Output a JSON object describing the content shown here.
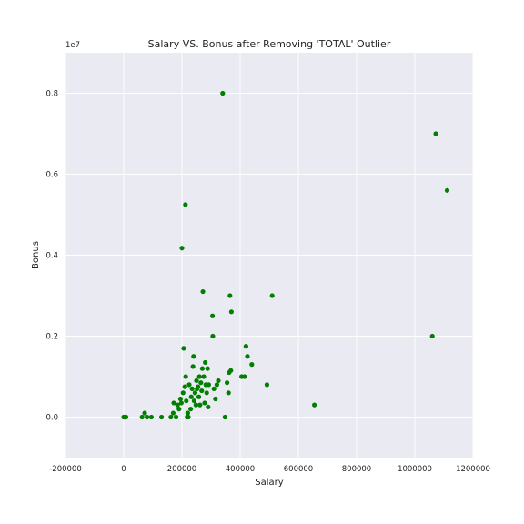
{
  "chart_data": {
    "type": "scatter",
    "title": "Salary VS. Bonus after Removing 'TOTAL' Outlier",
    "xlabel": "Salary",
    "ylabel": "Bonus",
    "xlim": [
      -200000,
      1200000
    ],
    "ylim": [
      -1000000,
      9000000
    ],
    "x_ticks": [
      -200000,
      0,
      200000,
      400000,
      600000,
      800000,
      1000000,
      1200000
    ],
    "x_tick_labels": [
      "-200000",
      "0",
      "200000",
      "400000",
      "600000",
      "800000",
      "1000000",
      "1200000"
    ],
    "y_ticks": [
      0,
      2000000,
      4000000,
      6000000,
      8000000
    ],
    "y_tick_labels": [
      "0.0",
      "0.2",
      "0.4",
      "0.6",
      "0.8"
    ],
    "y_offset_label": "1e7",
    "grid": true,
    "background_color": "#eaeaf2",
    "point_color": "#007f00",
    "points": [
      [
        0,
        0
      ],
      [
        2000,
        0
      ],
      [
        4000,
        0
      ],
      [
        6000,
        0
      ],
      [
        8000,
        0
      ],
      [
        63000,
        0
      ],
      [
        72000,
        100000
      ],
      [
        80000,
        0
      ],
      [
        95000,
        0
      ],
      [
        130000,
        0
      ],
      [
        162000,
        0
      ],
      [
        170000,
        100000
      ],
      [
        172000,
        350000
      ],
      [
        180000,
        0
      ],
      [
        185000,
        300000
      ],
      [
        190000,
        200000
      ],
      [
        195000,
        450000
      ],
      [
        198000,
        350000
      ],
      [
        200000,
        4175000
      ],
      [
        204000,
        600000
      ],
      [
        206000,
        1700000
      ],
      [
        210000,
        750000
      ],
      [
        212000,
        5250000
      ],
      [
        213000,
        1000000
      ],
      [
        215000,
        400000
      ],
      [
        218000,
        0
      ],
      [
        220000,
        100000
      ],
      [
        222000,
        0
      ],
      [
        225000,
        800000
      ],
      [
        230000,
        200000
      ],
      [
        232000,
        500000
      ],
      [
        235000,
        700000
      ],
      [
        238000,
        1250000
      ],
      [
        240000,
        1500000
      ],
      [
        242000,
        400000
      ],
      [
        245000,
        600000
      ],
      [
        248000,
        300000
      ],
      [
        250000,
        900000
      ],
      [
        252000,
        700000
      ],
      [
        255000,
        750000
      ],
      [
        258000,
        500000
      ],
      [
        260000,
        1000000
      ],
      [
        262000,
        300000
      ],
      [
        265000,
        850000
      ],
      [
        268000,
        650000
      ],
      [
        270000,
        1200000
      ],
      [
        272000,
        3100000
      ],
      [
        275000,
        1000000
      ],
      [
        278000,
        350000
      ],
      [
        280000,
        1350000
      ],
      [
        282000,
        800000
      ],
      [
        285000,
        600000
      ],
      [
        288000,
        1200000
      ],
      [
        290000,
        250000
      ],
      [
        292000,
        800000
      ],
      [
        305000,
        2500000
      ],
      [
        306000,
        2000000
      ],
      [
        310000,
        700000
      ],
      [
        315000,
        450000
      ],
      [
        320000,
        800000
      ],
      [
        325000,
        900000
      ],
      [
        340000,
        8000000
      ],
      [
        348000,
        0
      ],
      [
        355000,
        850000
      ],
      [
        360000,
        600000
      ],
      [
        362000,
        1100000
      ],
      [
        365000,
        3000000
      ],
      [
        368000,
        1150000
      ],
      [
        370000,
        2600000
      ],
      [
        405000,
        1000000
      ],
      [
        415000,
        1000000
      ],
      [
        420000,
        1750000
      ],
      [
        425000,
        1500000
      ],
      [
        440000,
        1300000
      ],
      [
        492000,
        800000
      ],
      [
        510000,
        3000000
      ],
      [
        655000,
        300000
      ],
      [
        1060000,
        2000000
      ],
      [
        1072000,
        7000000
      ],
      [
        1111000,
        5600000
      ]
    ]
  }
}
